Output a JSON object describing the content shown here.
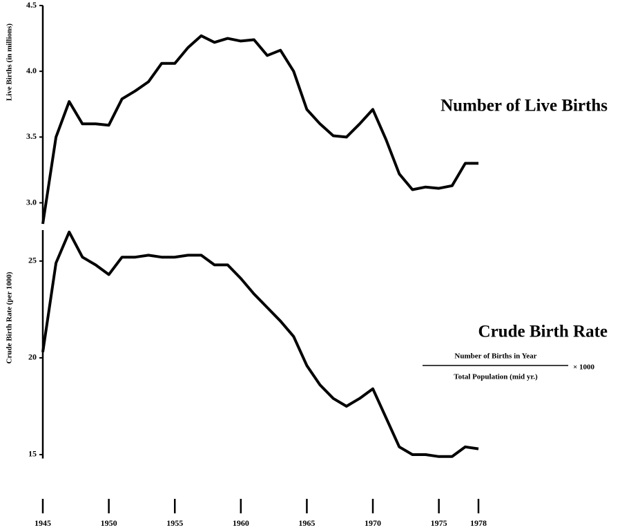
{
  "chart_data": [
    {
      "type": "line",
      "title": "Number of Live Births",
      "ylabel": "Live Births (in millions)",
      "x": [
        1945,
        1946,
        1947,
        1948,
        1949,
        1950,
        1951,
        1952,
        1953,
        1954,
        1955,
        1956,
        1957,
        1958,
        1959,
        1960,
        1961,
        1962,
        1963,
        1964,
        1965,
        1966,
        1967,
        1968,
        1969,
        1970,
        1971,
        1972,
        1973,
        1974,
        1975,
        1976,
        1977,
        1978
      ],
      "values": [
        2.84,
        3.5,
        3.77,
        3.6,
        3.6,
        3.59,
        3.79,
        3.85,
        3.92,
        4.06,
        4.06,
        4.18,
        4.27,
        4.22,
        4.25,
        4.23,
        4.24,
        4.12,
        4.16,
        4.0,
        3.71,
        3.6,
        3.51,
        3.5,
        3.6,
        3.71,
        3.48,
        3.22,
        3.1,
        3.12,
        3.11,
        3.13,
        3.3,
        3.3
      ],
      "color": "#000000",
      "xlim": [
        1945,
        1978
      ],
      "ylim": [
        2.84,
        4.5
      ],
      "yticks": [
        {
          "value": 3,
          "label": "3.0"
        },
        3.5,
        {
          "value": 4,
          "label": "4.0"
        },
        4.5
      ]
    },
    {
      "type": "line",
      "title": "Crude Birth Rate",
      "ylabel": "Crude Birth Rate (per 1000)",
      "formula": {
        "numerator": "Number of Births in Year",
        "denominator": "Total Population (mid yr.)",
        "multiplier": "× 1000"
      },
      "x": [
        1945,
        1946,
        1947,
        1948,
        1949,
        1950,
        1951,
        1952,
        1953,
        1954,
        1955,
        1956,
        1957,
        1958,
        1959,
        1960,
        1961,
        1962,
        1963,
        1964,
        1965,
        1966,
        1967,
        1968,
        1969,
        1970,
        1971,
        1972,
        1973,
        1974,
        1975,
        1976,
        1977,
        1978
      ],
      "values": [
        20.3,
        24.9,
        26.5,
        25.2,
        24.8,
        24.3,
        25.2,
        25.2,
        25.3,
        25.2,
        25.2,
        25.3,
        25.3,
        24.8,
        24.8,
        24.1,
        23.3,
        22.6,
        21.9,
        21.1,
        19.6,
        18.6,
        17.9,
        17.5,
        17.9,
        18.4,
        16.9,
        15.4,
        15.0,
        15.0,
        14.9,
        14.9,
        15.4,
        15.3
      ],
      "color": "#000000",
      "xlim": [
        1945,
        1978
      ],
      "ylim": [
        14.8,
        26.6
      ],
      "yticks": [
        15,
        20,
        25
      ],
      "xticks": [
        1945,
        1950,
        1955,
        1960,
        1965,
        1970,
        1975,
        1978
      ]
    }
  ]
}
